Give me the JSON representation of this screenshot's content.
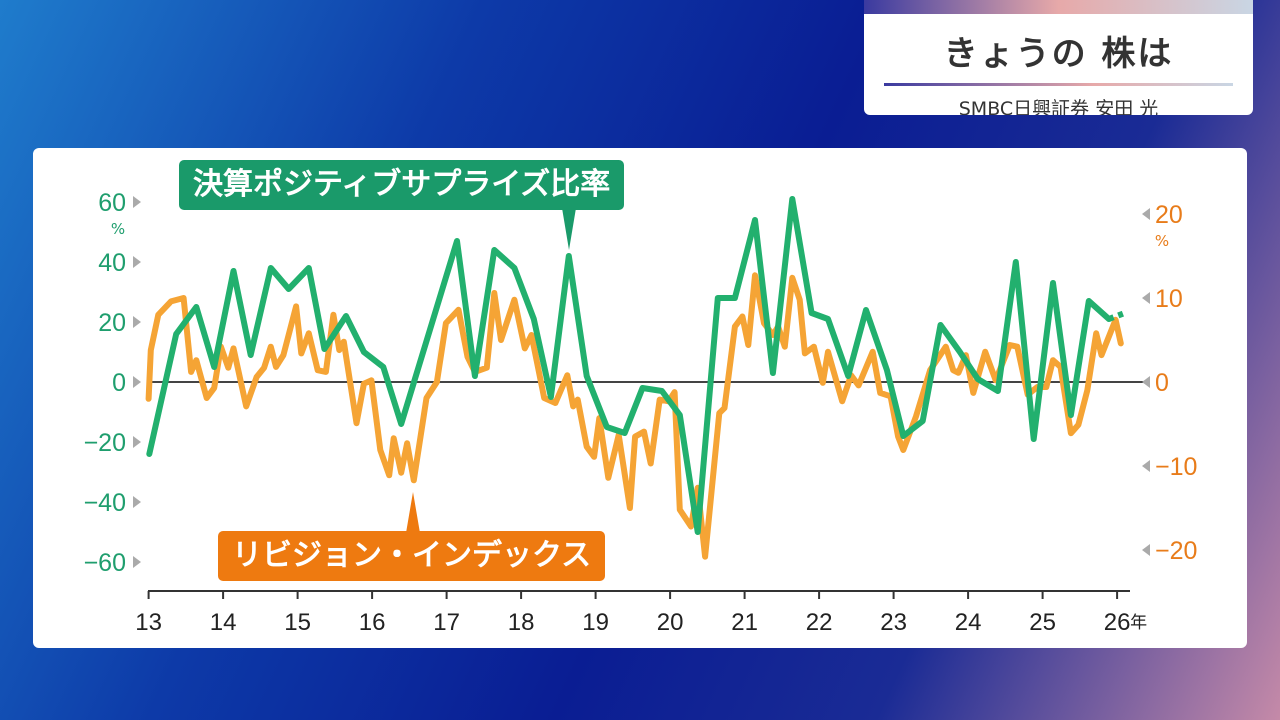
{
  "header": {
    "title": "きょうの 株は",
    "subtitle": "SMBC日興証券 安田 光"
  },
  "chart_data": {
    "type": "line",
    "title": "",
    "xlabel_unit": "年",
    "x_ticks": [
      "13",
      "14",
      "15",
      "16",
      "17",
      "18",
      "19",
      "20",
      "21",
      "22",
      "23",
      "24",
      "25",
      "26"
    ],
    "xlim": [
      13,
      26.2
    ],
    "left_axis": {
      "ticks": [
        "60",
        "40",
        "20",
        "0",
        "−20",
        "−40",
        "−60"
      ],
      "tick_values": [
        60,
        40,
        20,
        0,
        -20,
        -40,
        -60
      ],
      "unit": "%",
      "ylim": [
        -70,
        70
      ]
    },
    "right_axis": {
      "ticks": [
        "20",
        "10",
        "0",
        "−10",
        "−20"
      ],
      "tick_values": [
        20,
        10,
        0,
        -10,
        -20
      ],
      "unit": "%"
    },
    "series": [
      {
        "name": "決算ポジティブサプライズ比率",
        "axis": "left",
        "color": "#22b06e",
        "x": [
          13.01,
          13.37,
          13.64,
          13.88,
          14.14,
          14.37,
          14.64,
          14.88,
          15.15,
          15.36,
          15.65,
          15.89,
          16.15,
          16.39,
          17.14,
          17.38,
          17.64,
          17.91,
          18.17,
          18.4,
          18.64,
          18.88,
          19.15,
          19.39,
          19.63,
          19.89,
          20.13,
          20.37,
          20.64,
          20.87,
          21.14,
          21.38,
          21.64,
          21.9,
          22.12,
          22.39,
          22.63,
          22.91,
          23.13,
          23.39,
          23.63,
          23.89,
          24.13,
          24.4,
          24.64,
          24.88,
          25.14,
          25.38,
          25.62,
          25.89
        ],
        "y": [
          -24,
          16,
          25,
          5,
          37,
          9,
          38,
          31,
          38,
          11,
          22,
          10,
          5,
          -14,
          47,
          2,
          44,
          38,
          21,
          -5,
          42,
          2,
          -15,
          -17,
          -2,
          -3,
          -11,
          -50,
          28,
          28,
          54,
          3,
          61,
          23,
          21,
          2,
          24,
          4,
          -18,
          -13,
          19,
          10,
          1,
          -3,
          40,
          -19,
          33,
          -11,
          27,
          21
        ],
        "forecast": {
          "x": [
            25.89,
            26.1
          ],
          "y": [
            21,
            23
          ]
        }
      },
      {
        "name": "リビジョン・インデックス",
        "axis": "right",
        "color": "#f5a435",
        "x": [
          13.0,
          13.03,
          13.13,
          13.3,
          13.47,
          13.57,
          13.64,
          13.78,
          13.88,
          13.97,
          14.07,
          14.14,
          14.31,
          14.45,
          14.55,
          14.64,
          14.71,
          14.81,
          14.98,
          15.05,
          15.15,
          15.27,
          15.38,
          15.48,
          15.56,
          15.62,
          15.79,
          15.89,
          15.99,
          16.11,
          16.23,
          16.29,
          16.39,
          16.47,
          16.56,
          16.73,
          16.87,
          16.99,
          17.16,
          17.28,
          17.38,
          17.54,
          17.64,
          17.73,
          17.91,
          18.05,
          18.14,
          18.31,
          18.46,
          18.62,
          18.7,
          18.76,
          18.88,
          18.98,
          19.05,
          19.17,
          19.31,
          19.46,
          19.53,
          19.65,
          19.74,
          19.86,
          19.98,
          20.06,
          20.13,
          20.28,
          20.37,
          20.47,
          20.66,
          20.73,
          20.87,
          20.97,
          21.05,
          21.14,
          21.26,
          21.38,
          21.45,
          21.54,
          21.64,
          21.74,
          21.81,
          21.93,
          22.05,
          22.12,
          22.31,
          22.43,
          22.53,
          22.72,
          22.82,
          22.96,
          23.06,
          23.13,
          23.3,
          23.49,
          23.7,
          23.8,
          23.87,
          23.97,
          24.07,
          24.23,
          24.37,
          24.56,
          24.66,
          24.8,
          24.93,
          25.05,
          25.14,
          25.24,
          25.38,
          25.48,
          25.6,
          25.72,
          25.79,
          25.98,
          26.05
        ],
        "y": [
          -2,
          3.8,
          8,
          9.6,
          10,
          1.2,
          2.6,
          -1.9,
          -0.7,
          4.2,
          1.7,
          4,
          -2.9,
          0.6,
          1.7,
          4.2,
          1.8,
          3.2,
          9,
          3.4,
          5.8,
          1.4,
          1.2,
          8,
          3.8,
          4.8,
          -4.9,
          -0.2,
          0.2,
          -8.1,
          -11.1,
          -6.7,
          -10.8,
          -7.3,
          -11.7,
          -1.9,
          0,
          7,
          8.6,
          3,
          1.2,
          1.7,
          10.6,
          5,
          9.8,
          4,
          5.6,
          -1.9,
          -2.5,
          0.8,
          -2.9,
          -2.1,
          -7.7,
          -8.9,
          -4.3,
          -11.4,
          -6.3,
          -15,
          -6.5,
          -5.9,
          -9.7,
          -2.1,
          -2.3,
          -1.2,
          -15.2,
          -17.2,
          -12.6,
          -20.8,
          -3.7,
          -3.1,
          6.6,
          7.8,
          4.4,
          12.7,
          7,
          5.6,
          6.6,
          4.2,
          12.4,
          9.8,
          3.4,
          4.2,
          -0.1,
          3.6,
          -2.3,
          0.8,
          -0.4,
          3.6,
          -1.3,
          -1.7,
          -6.5,
          -8.1,
          -4.1,
          1.4,
          4.2,
          1.4,
          1.1,
          3.2,
          -1.3,
          3.6,
          0.2,
          4.4,
          4.2,
          -1.5,
          -0.6,
          -0.6,
          2.6,
          1.8,
          -6.1,
          -5.1,
          -1,
          5.8,
          3.2,
          7.4,
          4.6
        ]
      }
    ],
    "annotations": [
      "決算ポジティブサプライズ比率",
      "リビジョン・インデックス"
    ],
    "grid": false,
    "zero_line": true
  }
}
